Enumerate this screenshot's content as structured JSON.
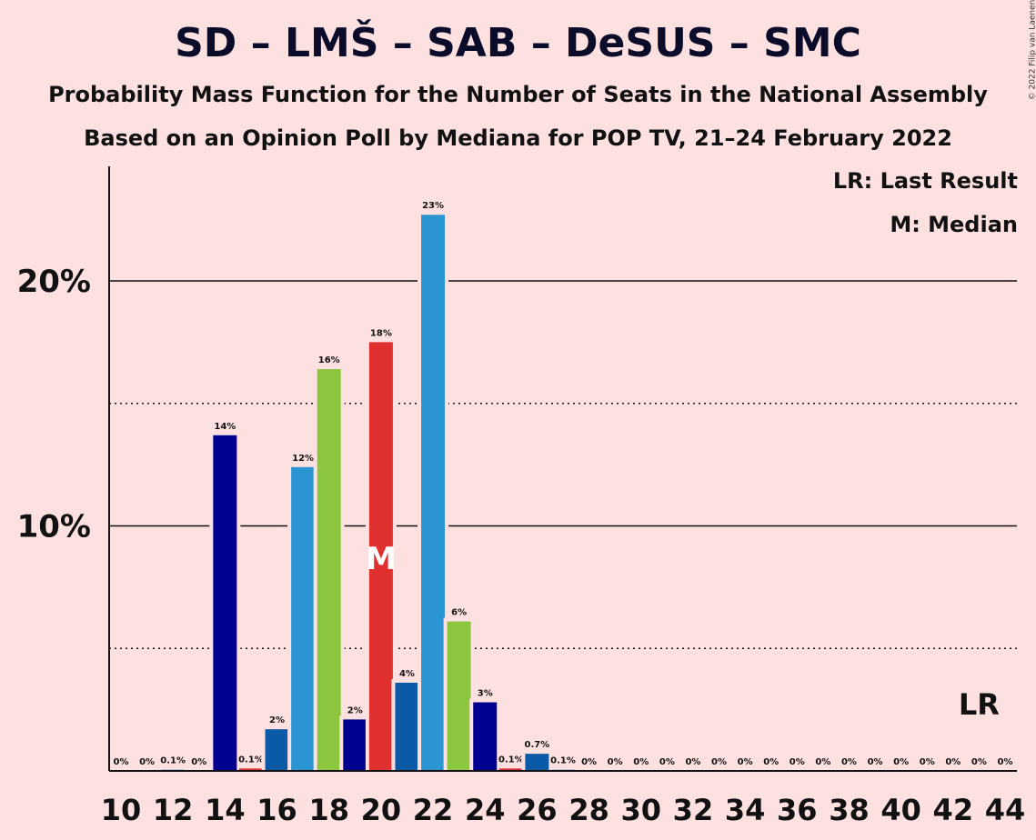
{
  "title": "SD – LMŠ – SAB – DeSUS – SMC",
  "subtitle1": "Probability Mass Function for the Number of Seats in the National Assembly",
  "subtitle2": "Based on an Opinion Poll by Mediana for POP TV, 21–24 February 2022",
  "copyright": "© 2022 Filip van Laenen",
  "legend": {
    "lr": "LR: Last Result",
    "m": "M: Median"
  },
  "markers": {
    "median_label": "M",
    "median_seat": 20,
    "last_result_label": "LR",
    "last_result_seat": 43
  },
  "chart_data": {
    "type": "bar",
    "xlabel": "",
    "ylabel": "",
    "ylim": [
      0,
      24.5
    ],
    "y_ticks": [
      {
        "value": 10,
        "label": "10%"
      },
      {
        "value": 20,
        "label": "20%"
      }
    ],
    "y_minor_gridlines": [
      5,
      15
    ],
    "x_tick_labels": [
      "10",
      "12",
      "14",
      "16",
      "18",
      "20",
      "22",
      "24",
      "26",
      "28",
      "30",
      "32",
      "34",
      "36",
      "38",
      "40",
      "42",
      "44"
    ],
    "bars": [
      {
        "seat": 10,
        "value": 0,
        "label": "0%",
        "color": "#2b95d3"
      },
      {
        "seat": 11,
        "value": 0,
        "label": "0%",
        "color": "#2b95d3"
      },
      {
        "seat": 12,
        "value": 0.05,
        "label": "0.1%",
        "color": "#2b95d3"
      },
      {
        "seat": 13,
        "value": 0,
        "label": "0%",
        "color": "#2b95d3"
      },
      {
        "seat": 14,
        "value": 13.7,
        "label": "14%",
        "color": "#000090"
      },
      {
        "seat": 15,
        "value": 0.1,
        "label": "0.1%",
        "color": "#e03030"
      },
      {
        "seat": 16,
        "value": 1.7,
        "label": "2%",
        "color": "#0a5aa8"
      },
      {
        "seat": 17,
        "value": 12.4,
        "label": "12%",
        "color": "#2b95d3"
      },
      {
        "seat": 18,
        "value": 16.4,
        "label": "16%",
        "color": "#8cc63e"
      },
      {
        "seat": 19,
        "value": 2.1,
        "label": "2%",
        "color": "#000090"
      },
      {
        "seat": 20,
        "value": 17.5,
        "label": "18%",
        "color": "#e03030"
      },
      {
        "seat": 21,
        "value": 3.6,
        "label": "4%",
        "color": "#0a5aa8"
      },
      {
        "seat": 22,
        "value": 22.7,
        "label": "23%",
        "color": "#2b95d3"
      },
      {
        "seat": 23,
        "value": 6.1,
        "label": "6%",
        "color": "#8cc63e"
      },
      {
        "seat": 24,
        "value": 2.8,
        "label": "3%",
        "color": "#000090"
      },
      {
        "seat": 25,
        "value": 0.1,
        "label": "0.1%",
        "color": "#e03030"
      },
      {
        "seat": 26,
        "value": 0.7,
        "label": "0.7%",
        "color": "#0a5aa8"
      },
      {
        "seat": 27,
        "value": 0.05,
        "label": "0.1%",
        "color": "#2b95d3"
      },
      {
        "seat": 28,
        "value": 0,
        "label": "0%",
        "color": "#2b95d3"
      },
      {
        "seat": 29,
        "value": 0,
        "label": "0%",
        "color": "#2b95d3"
      },
      {
        "seat": 30,
        "value": 0,
        "label": "0%",
        "color": "#2b95d3"
      },
      {
        "seat": 31,
        "value": 0,
        "label": "0%",
        "color": "#2b95d3"
      },
      {
        "seat": 32,
        "value": 0,
        "label": "0%",
        "color": "#2b95d3"
      },
      {
        "seat": 33,
        "value": 0,
        "label": "0%",
        "color": "#2b95d3"
      },
      {
        "seat": 34,
        "value": 0,
        "label": "0%",
        "color": "#2b95d3"
      },
      {
        "seat": 35,
        "value": 0,
        "label": "0%",
        "color": "#2b95d3"
      },
      {
        "seat": 36,
        "value": 0,
        "label": "0%",
        "color": "#2b95d3"
      },
      {
        "seat": 37,
        "value": 0,
        "label": "0%",
        "color": "#2b95d3"
      },
      {
        "seat": 38,
        "value": 0,
        "label": "0%",
        "color": "#2b95d3"
      },
      {
        "seat": 39,
        "value": 0,
        "label": "0%",
        "color": "#2b95d3"
      },
      {
        "seat": 40,
        "value": 0,
        "label": "0%",
        "color": "#2b95d3"
      },
      {
        "seat": 41,
        "value": 0,
        "label": "0%",
        "color": "#2b95d3"
      },
      {
        "seat": 42,
        "value": 0,
        "label": "0%",
        "color": "#2b95d3"
      },
      {
        "seat": 43,
        "value": 0,
        "label": "0%",
        "color": "#2b95d3"
      },
      {
        "seat": 44,
        "value": 0,
        "label": "0%",
        "color": "#2b95d3"
      }
    ]
  }
}
